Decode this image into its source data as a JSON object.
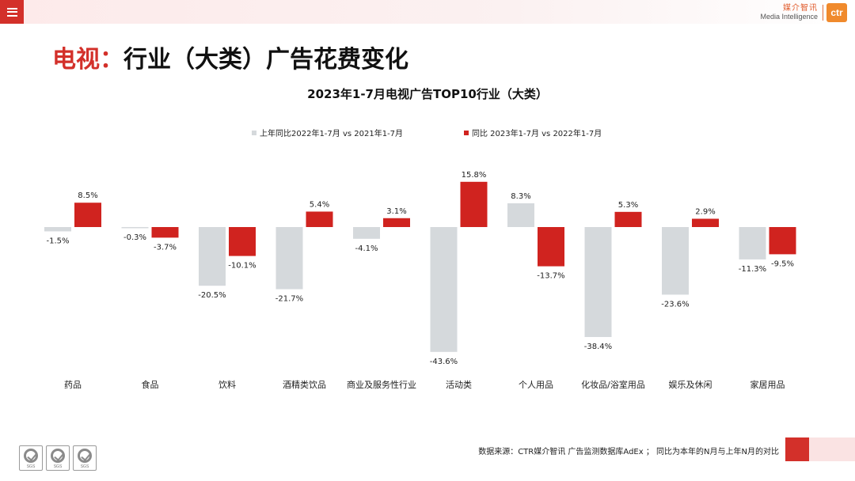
{
  "header": {
    "menu_icon": "hamburger-menu-icon",
    "brand_cn": "媒介智讯",
    "brand_en": "Media Intelligence",
    "brand_logo": "ctr"
  },
  "page": {
    "title_prefix": "电视：",
    "title_main": "行业（大类）广告花费变化"
  },
  "colors": {
    "accent": "#d3302a",
    "series_gray": "#d5d9dc",
    "series_red": "#d0231f"
  },
  "chart_data": {
    "type": "bar",
    "title": "2023年1-7月电视广告TOP10行业（大类）",
    "categories": [
      "药品",
      "食品",
      "饮料",
      "酒精类饮品",
      "商业及服务性行业",
      "活动类",
      "个人用品",
      "化妆品/浴室用品",
      "娱乐及休闲",
      "家居用品"
    ],
    "series": [
      {
        "name": "上年同比2022年1-7月  vs  2021年1-7月",
        "color": "#d5d9dc",
        "values": [
          -1.5,
          -0.3,
          -20.5,
          -21.7,
          -4.1,
          -43.6,
          8.3,
          -38.4,
          -23.6,
          -11.3
        ]
      },
      {
        "name": "同比 2023年1-7月  vs  2022年1-7月",
        "color": "#d0231f",
        "values": [
          8.5,
          -3.7,
          -10.1,
          5.4,
          3.1,
          15.8,
          -13.7,
          5.3,
          2.9,
          -9.5
        ]
      }
    ],
    "value_suffix": "%",
    "ylim": [
      -43.6,
      15.8
    ],
    "grid": false,
    "legend_position": "top-center"
  },
  "footer": {
    "source": "数据来源：CTR媒介智讯 广告监测数据库AdEx ；  同比为本年的N月与上年N月的对比",
    "stamp_label": "SGS",
    "stamp_icon": "certification-stamp-icon"
  }
}
